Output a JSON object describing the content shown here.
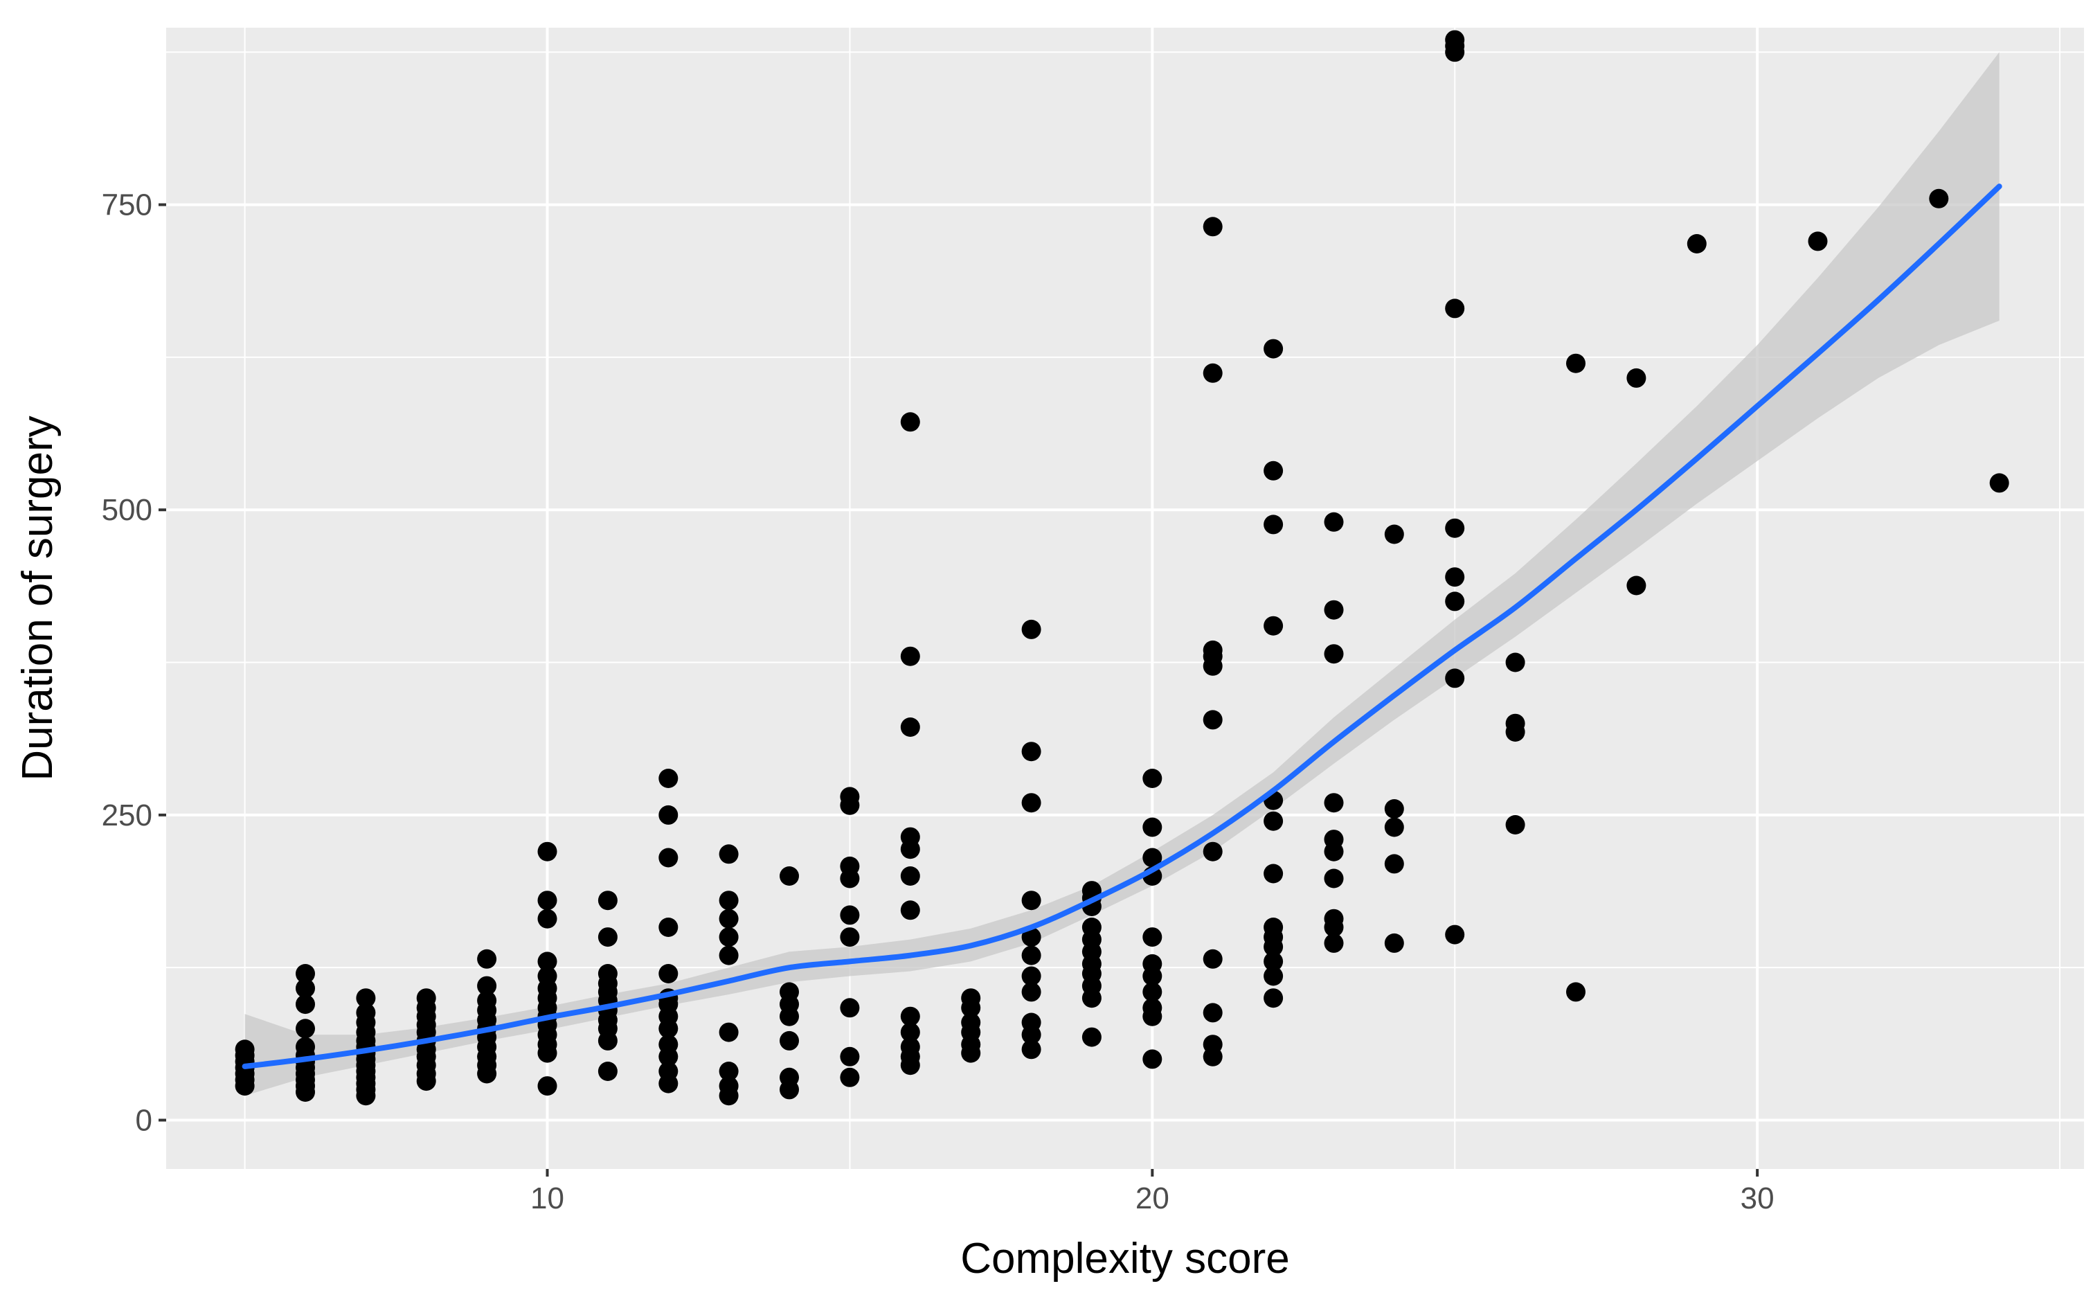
{
  "chart_data": {
    "type": "scatter",
    "title": "",
    "xlabel": "Complexity score",
    "ylabel": "Duration of surgery",
    "xlim": [
      3.7,
      35.4
    ],
    "ylim": [
      -40,
      895
    ],
    "x_ticks": [
      10,
      20,
      30
    ],
    "x_tick_labels": [
      "10",
      "20",
      "30"
    ],
    "y_ticks": [
      0,
      250,
      500,
      750
    ],
    "y_tick_labels": [
      "0",
      "250",
      "500",
      "750"
    ],
    "grid": true,
    "legend": "none",
    "colors": {
      "panel": "#ebebeb",
      "grid": "#ffffff",
      "points": "#000000",
      "smooth_line": "#1f6bff",
      "confidence_band": "#c8c8c8",
      "tick_text": "#4d4d4d",
      "axis_title": "#000000"
    },
    "points": [
      [
        5,
        28
      ],
      [
        5,
        33
      ],
      [
        5,
        38
      ],
      [
        5,
        43
      ],
      [
        5,
        48
      ],
      [
        5,
        53
      ],
      [
        5,
        58
      ],
      [
        6,
        23
      ],
      [
        6,
        28
      ],
      [
        6,
        33
      ],
      [
        6,
        38
      ],
      [
        6,
        43
      ],
      [
        6,
        48
      ],
      [
        6,
        53
      ],
      [
        6,
        60
      ],
      [
        6,
        75
      ],
      [
        6,
        95
      ],
      [
        6,
        108
      ],
      [
        6,
        120
      ],
      [
        7,
        20
      ],
      [
        7,
        25
      ],
      [
        7,
        30
      ],
      [
        7,
        35
      ],
      [
        7,
        40
      ],
      [
        7,
        45
      ],
      [
        7,
        50
      ],
      [
        7,
        55
      ],
      [
        7,
        60
      ],
      [
        7,
        65
      ],
      [
        7,
        72
      ],
      [
        7,
        80
      ],
      [
        7,
        88
      ],
      [
        7,
        100
      ],
      [
        8,
        32
      ],
      [
        8,
        38
      ],
      [
        8,
        45
      ],
      [
        8,
        52
      ],
      [
        8,
        58
      ],
      [
        8,
        65
      ],
      [
        8,
        72
      ],
      [
        8,
        78
      ],
      [
        8,
        85
      ],
      [
        8,
        92
      ],
      [
        8,
        100
      ],
      [
        9,
        38
      ],
      [
        9,
        45
      ],
      [
        9,
        52
      ],
      [
        9,
        60
      ],
      [
        9,
        68
      ],
      [
        9,
        75
      ],
      [
        9,
        82
      ],
      [
        9,
        90
      ],
      [
        9,
        98
      ],
      [
        9,
        110
      ],
      [
        9,
        132
      ],
      [
        10,
        28
      ],
      [
        10,
        55
      ],
      [
        10,
        62
      ],
      [
        10,
        70
      ],
      [
        10,
        78
      ],
      [
        10,
        85
      ],
      [
        10,
        92
      ],
      [
        10,
        100
      ],
      [
        10,
        108
      ],
      [
        10,
        118
      ],
      [
        10,
        130
      ],
      [
        10,
        165
      ],
      [
        10,
        180
      ],
      [
        10,
        220
      ],
      [
        11,
        40
      ],
      [
        11,
        65
      ],
      [
        11,
        75
      ],
      [
        11,
        82
      ],
      [
        11,
        90
      ],
      [
        11,
        98
      ],
      [
        11,
        105
      ],
      [
        11,
        112
      ],
      [
        11,
        120
      ],
      [
        11,
        150
      ],
      [
        11,
        180
      ],
      [
        12,
        30
      ],
      [
        12,
        40
      ],
      [
        12,
        52
      ],
      [
        12,
        62
      ],
      [
        12,
        75
      ],
      [
        12,
        85
      ],
      [
        12,
        95
      ],
      [
        12,
        100
      ],
      [
        12,
        120
      ],
      [
        12,
        158
      ],
      [
        12,
        215
      ],
      [
        12,
        250
      ],
      [
        12,
        280
      ],
      [
        13,
        20
      ],
      [
        13,
        28
      ],
      [
        13,
        40
      ],
      [
        13,
        72
      ],
      [
        13,
        135
      ],
      [
        13,
        150
      ],
      [
        13,
        165
      ],
      [
        13,
        180
      ],
      [
        13,
        218
      ],
      [
        14,
        25
      ],
      [
        14,
        35
      ],
      [
        14,
        65
      ],
      [
        14,
        85
      ],
      [
        14,
        95
      ],
      [
        14,
        105
      ],
      [
        14,
        200
      ],
      [
        15,
        35
      ],
      [
        15,
        52
      ],
      [
        15,
        92
      ],
      [
        15,
        150
      ],
      [
        15,
        168
      ],
      [
        15,
        198
      ],
      [
        15,
        208
      ],
      [
        15,
        258
      ],
      [
        15,
        265
      ],
      [
        16,
        45
      ],
      [
        16,
        52
      ],
      [
        16,
        60
      ],
      [
        16,
        72
      ],
      [
        16,
        85
      ],
      [
        16,
        172
      ],
      [
        16,
        200
      ],
      [
        16,
        222
      ],
      [
        16,
        232
      ],
      [
        16,
        322
      ],
      [
        16,
        380
      ],
      [
        16,
        572
      ],
      [
        17,
        55
      ],
      [
        17,
        62
      ],
      [
        17,
        72
      ],
      [
        17,
        80
      ],
      [
        17,
        92
      ],
      [
        17,
        100
      ],
      [
        18,
        58
      ],
      [
        18,
        70
      ],
      [
        18,
        80
      ],
      [
        18,
        105
      ],
      [
        18,
        118
      ],
      [
        18,
        135
      ],
      [
        18,
        150
      ],
      [
        18,
        180
      ],
      [
        18,
        260
      ],
      [
        18,
        302
      ],
      [
        18,
        402
      ],
      [
        19,
        68
      ],
      [
        19,
        100
      ],
      [
        19,
        110
      ],
      [
        19,
        120
      ],
      [
        19,
        128
      ],
      [
        19,
        138
      ],
      [
        19,
        148
      ],
      [
        19,
        158
      ],
      [
        19,
        175
      ],
      [
        19,
        182
      ],
      [
        19,
        188
      ],
      [
        20,
        50
      ],
      [
        20,
        85
      ],
      [
        20,
        92
      ],
      [
        20,
        105
      ],
      [
        20,
        118
      ],
      [
        20,
        128
      ],
      [
        20,
        150
      ],
      [
        20,
        200
      ],
      [
        20,
        215
      ],
      [
        20,
        240
      ],
      [
        20,
        280
      ],
      [
        21,
        52
      ],
      [
        21,
        62
      ],
      [
        21,
        88
      ],
      [
        21,
        132
      ],
      [
        21,
        220
      ],
      [
        21,
        328
      ],
      [
        21,
        372
      ],
      [
        21,
        380
      ],
      [
        21,
        385
      ],
      [
        21,
        612
      ],
      [
        21,
        732
      ],
      [
        22,
        100
      ],
      [
        22,
        118
      ],
      [
        22,
        130
      ],
      [
        22,
        142
      ],
      [
        22,
        150
      ],
      [
        22,
        158
      ],
      [
        22,
        202
      ],
      [
        22,
        245
      ],
      [
        22,
        262
      ],
      [
        22,
        405
      ],
      [
        22,
        488
      ],
      [
        22,
        532
      ],
      [
        22,
        632
      ],
      [
        23,
        145
      ],
      [
        23,
        158
      ],
      [
        23,
        165
      ],
      [
        23,
        198
      ],
      [
        23,
        220
      ],
      [
        23,
        230
      ],
      [
        23,
        260
      ],
      [
        23,
        382
      ],
      [
        23,
        418
      ],
      [
        23,
        490
      ],
      [
        24,
        145
      ],
      [
        24,
        210
      ],
      [
        24,
        240
      ],
      [
        24,
        255
      ],
      [
        24,
        480
      ],
      [
        25,
        152
      ],
      [
        25,
        362
      ],
      [
        25,
        425
      ],
      [
        25,
        445
      ],
      [
        25,
        485
      ],
      [
        25,
        665
      ],
      [
        25,
        875
      ],
      [
        25,
        880
      ],
      [
        25,
        885
      ],
      [
        26,
        242
      ],
      [
        26,
        318
      ],
      [
        26,
        325
      ],
      [
        26,
        375
      ],
      [
        27,
        105
      ],
      [
        27,
        620
      ],
      [
        28,
        438
      ],
      [
        28,
        608
      ],
      [
        29,
        718
      ],
      [
        31,
        720
      ],
      [
        33,
        755
      ],
      [
        34,
        522
      ]
    ],
    "smooth": {
      "method": "loess",
      "x": [
        5,
        6,
        7,
        8,
        9,
        10,
        11,
        12,
        13,
        14,
        15,
        16,
        17,
        18,
        19,
        20,
        21,
        22,
        23,
        24,
        25,
        26,
        27,
        28,
        29,
        30,
        31,
        32,
        33,
        34
      ],
      "y": [
        44,
        50,
        57,
        65,
        74,
        84,
        93,
        103,
        114,
        125,
        130,
        135,
        143,
        158,
        180,
        205,
        235,
        270,
        310,
        348,
        385,
        420,
        460,
        500,
        542,
        585,
        628,
        672,
        718,
        765
      ],
      "lower": [
        20,
        35,
        45,
        55,
        65,
        74,
        84,
        94,
        103,
        113,
        118,
        122,
        130,
        145,
        168,
        192,
        220,
        255,
        292,
        328,
        362,
        396,
        432,
        468,
        505,
        540,
        575,
        608,
        635,
        655
      ],
      "upper": [
        87,
        70,
        70,
        76,
        84,
        93,
        103,
        112,
        125,
        138,
        142,
        148,
        157,
        172,
        192,
        220,
        250,
        285,
        330,
        370,
        410,
        448,
        492,
        538,
        585,
        635,
        690,
        748,
        810,
        875
      ]
    }
  }
}
